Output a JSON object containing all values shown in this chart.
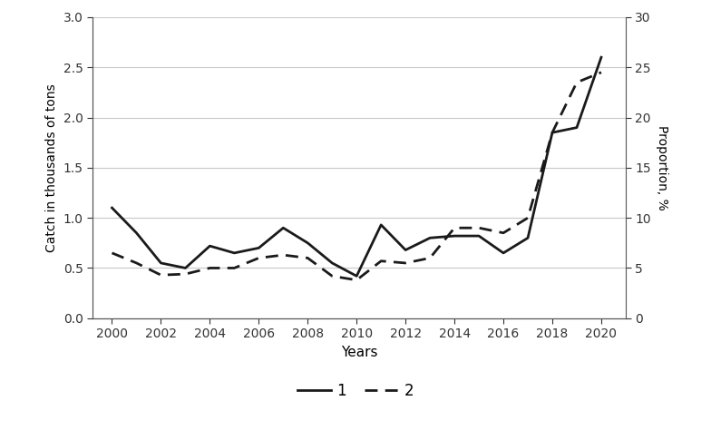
{
  "years": [
    2000,
    2001,
    2002,
    2003,
    2004,
    2005,
    2006,
    2007,
    2008,
    2009,
    2010,
    2011,
    2012,
    2013,
    2014,
    2015,
    2016,
    2017,
    2018,
    2019,
    2020
  ],
  "series1": [
    1.1,
    0.85,
    0.55,
    0.5,
    0.72,
    0.65,
    0.7,
    0.9,
    0.75,
    0.55,
    0.42,
    0.93,
    0.68,
    0.8,
    0.82,
    0.82,
    0.65,
    0.8,
    1.85,
    1.9,
    2.6
  ],
  "series2": [
    0.65,
    0.55,
    0.43,
    0.44,
    0.5,
    0.5,
    0.6,
    0.63,
    0.6,
    0.42,
    0.38,
    0.57,
    0.55,
    0.6,
    0.9,
    0.9,
    0.85,
    1.0,
    1.85,
    2.35,
    2.45
  ],
  "ylim_left": [
    0.0,
    3.0
  ],
  "ylim_right": [
    0,
    30
  ],
  "yticks_left": [
    0.0,
    0.5,
    1.0,
    1.5,
    2.0,
    2.5,
    3.0
  ],
  "yticks_right": [
    0,
    5,
    10,
    15,
    20,
    25,
    30
  ],
  "xlabel": "Years",
  "ylabel_left": "Catch in thousands of tons",
  "ylabel_right": "Proportion, %",
  "xticks": [
    2000,
    2002,
    2004,
    2006,
    2008,
    2010,
    2012,
    2014,
    2016,
    2018,
    2020
  ],
  "legend_labels": [
    "1",
    "2"
  ],
  "line_color": "#1a1a1a",
  "background_color": "#ffffff",
  "grid_color": "#c8c8c8",
  "xlim": [
    1999.2,
    2021.0
  ]
}
